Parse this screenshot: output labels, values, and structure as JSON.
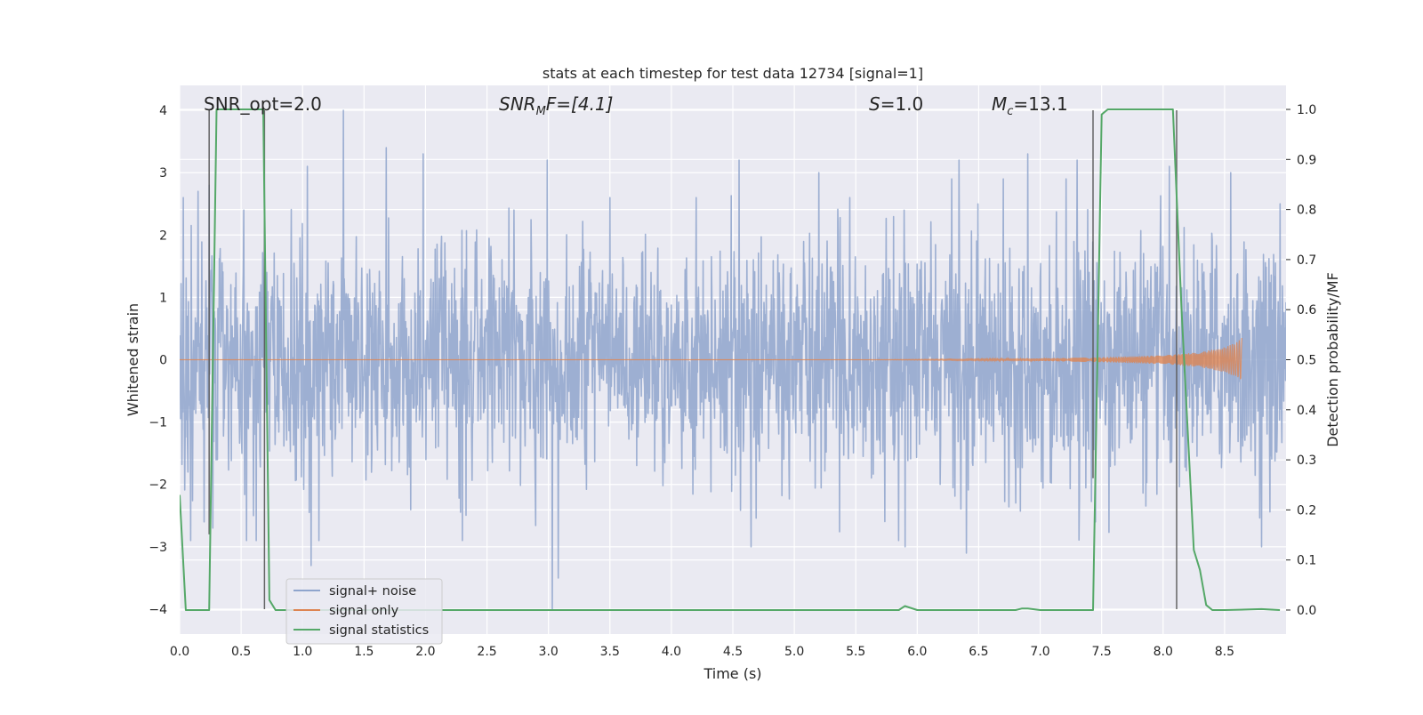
{
  "chart_data": {
    "type": "line",
    "title": "stats at each timestep for test data 12734 [signal=1]",
    "xlabel": "Time (s)",
    "ylabel": "Whitened strain",
    "ylabel_right": "Detection probability/MF",
    "xlim": [
      0.0,
      9.0
    ],
    "ylim": [
      -4.4,
      4.4
    ],
    "ylim_right": [
      -0.048,
      1.048
    ],
    "x_ticks": [
      "0.0",
      "0.5",
      "1.0",
      "1.5",
      "2.0",
      "2.5",
      "3.0",
      "3.5",
      "4.0",
      "4.5",
      "5.0",
      "5.5",
      "6.0",
      "6.5",
      "7.0",
      "7.5",
      "8.0",
      "8.5"
    ],
    "x_tick_values": [
      0.0,
      0.5,
      1.0,
      1.5,
      2.0,
      2.5,
      3.0,
      3.5,
      4.0,
      4.5,
      5.0,
      5.5,
      6.0,
      6.5,
      7.0,
      7.5,
      8.0,
      8.5
    ],
    "y_ticks": [
      "4",
      "3",
      "2",
      "1",
      "0",
      "−1",
      "−2",
      "−3",
      "−4"
    ],
    "y_tick_values": [
      4,
      3,
      2,
      1,
      0,
      -1,
      -2,
      -3,
      -4
    ],
    "y2_ticks": [
      "1.0",
      "0.9",
      "0.8",
      "0.7",
      "0.6",
      "0.5",
      "0.4",
      "0.3",
      "0.2",
      "0.1",
      "0.0"
    ],
    "y2_tick_values": [
      1.0,
      0.9,
      0.8,
      0.7,
      0.6,
      0.5,
      0.4,
      0.3,
      0.2,
      0.1,
      0.0
    ],
    "grid": true,
    "legend_position": "lower-left",
    "annotations": {
      "snr_opt": "SNR_opt=2.0",
      "snr_mf_base": "SNR",
      "snr_mf_sub": "M",
      "snr_mf_rest": "F=[4.1]",
      "s_var": "S",
      "s_rest": "=1.0",
      "mc_var": "M",
      "mc_sub": "c",
      "mc_rest": "=13.1"
    },
    "series": [
      {
        "name": "signal+ noise",
        "color": "#8fa5cd",
        "axis": "left",
        "description": "whitened noisy strain, roughly within ±2.5 with peaks to ±4",
        "spike_peaks": [
          {
            "t": 0.03,
            "v": 2.6
          },
          {
            "t": 0.15,
            "v": 2.7
          },
          {
            "t": 0.2,
            "v": -2.6
          },
          {
            "t": 0.24,
            "v": 2.8
          },
          {
            "t": 0.27,
            "v": -2.7
          },
          {
            "t": 0.52,
            "v": 2.4
          },
          {
            "t": 0.6,
            "v": -2.5
          },
          {
            "t": 1.04,
            "v": 3.1
          },
          {
            "t": 1.07,
            "v": -3.3
          },
          {
            "t": 1.33,
            "v": 4.0
          },
          {
            "t": 1.68,
            "v": 3.4
          },
          {
            "t": 1.98,
            "v": 3.3
          },
          {
            "t": 2.3,
            "v": -2.9
          },
          {
            "t": 2.72,
            "v": 2.4
          },
          {
            "t": 2.99,
            "v": 3.2
          },
          {
            "t": 3.03,
            "v": -4.0
          },
          {
            "t": 3.08,
            "v": -3.5
          },
          {
            "t": 3.5,
            "v": 2.6
          },
          {
            "t": 4.2,
            "v": 2.6
          },
          {
            "t": 4.55,
            "v": 3.2
          },
          {
            "t": 4.65,
            "v": -3.0
          },
          {
            "t": 5.2,
            "v": 3.0
          },
          {
            "t": 5.45,
            "v": 2.6
          },
          {
            "t": 5.9,
            "v": -3.0
          },
          {
            "t": 6.34,
            "v": 3.2
          },
          {
            "t": 6.4,
            "v": -3.1
          },
          {
            "t": 6.7,
            "v": 2.9
          },
          {
            "t": 6.9,
            "v": 3.3
          },
          {
            "t": 7.3,
            "v": 3.2
          },
          {
            "t": 7.45,
            "v": -2.6
          },
          {
            "t": 8.05,
            "v": 3.1
          },
          {
            "t": 8.55,
            "v": 3.0
          },
          {
            "t": 8.8,
            "v": -3.0
          },
          {
            "t": 8.95,
            "v": 2.5
          }
        ]
      },
      {
        "name": "signal only",
        "color": "#dd8452",
        "axis": "left",
        "description": "inspiral chirp growing towards merger",
        "envelope": [
          {
            "t": 5.5,
            "v": 0.0
          },
          {
            "t": 6.5,
            "v": 0.01
          },
          {
            "t": 7.0,
            "v": 0.02
          },
          {
            "t": 7.5,
            "v": 0.04
          },
          {
            "t": 8.0,
            "v": 0.07
          },
          {
            "t": 8.3,
            "v": 0.12
          },
          {
            "t": 8.5,
            "v": 0.2
          },
          {
            "t": 8.6,
            "v": 0.28
          },
          {
            "t": 8.64,
            "v": 0.35
          }
        ],
        "end_time": 8.64
      },
      {
        "name": "signal statistics",
        "color": "#55a868",
        "axis": "right",
        "x": [
          0.0,
          0.05,
          0.1,
          0.2,
          0.24,
          0.3,
          0.35,
          0.5,
          0.6,
          0.68,
          0.73,
          0.78,
          1.0,
          5.8,
          5.85,
          5.9,
          6.0,
          6.8,
          6.85,
          6.9,
          7.0,
          7.43,
          7.5,
          7.55,
          7.6,
          8.08,
          8.15,
          8.25,
          8.3,
          8.35,
          8.4,
          8.5,
          8.8,
          8.95
        ],
        "y": [
          0.23,
          0.0,
          0.0,
          0.0,
          0.0,
          1.0,
          1.0,
          1.0,
          1.0,
          1.0,
          0.02,
          0.0,
          0.0,
          0.0,
          0.0,
          0.008,
          0.0,
          0.0,
          0.003,
          0.003,
          0.0,
          0.0,
          0.99,
          1.0,
          1.0,
          1.0,
          0.6,
          0.12,
          0.08,
          0.01,
          0.0,
          0.0,
          0.002,
          0.0
        ]
      }
    ],
    "marker_lines": [
      {
        "t": 0.24,
        "y_top": 4.0,
        "y_bottom": -2.8
      },
      {
        "t": 0.69,
        "y_top": 4.0,
        "y_bottom": -4.0
      },
      {
        "t": 7.43,
        "y_top": 4.0,
        "y_bottom": -1.9
      },
      {
        "t": 8.11,
        "y_top": 4.0,
        "y_bottom": -4.0
      }
    ]
  }
}
